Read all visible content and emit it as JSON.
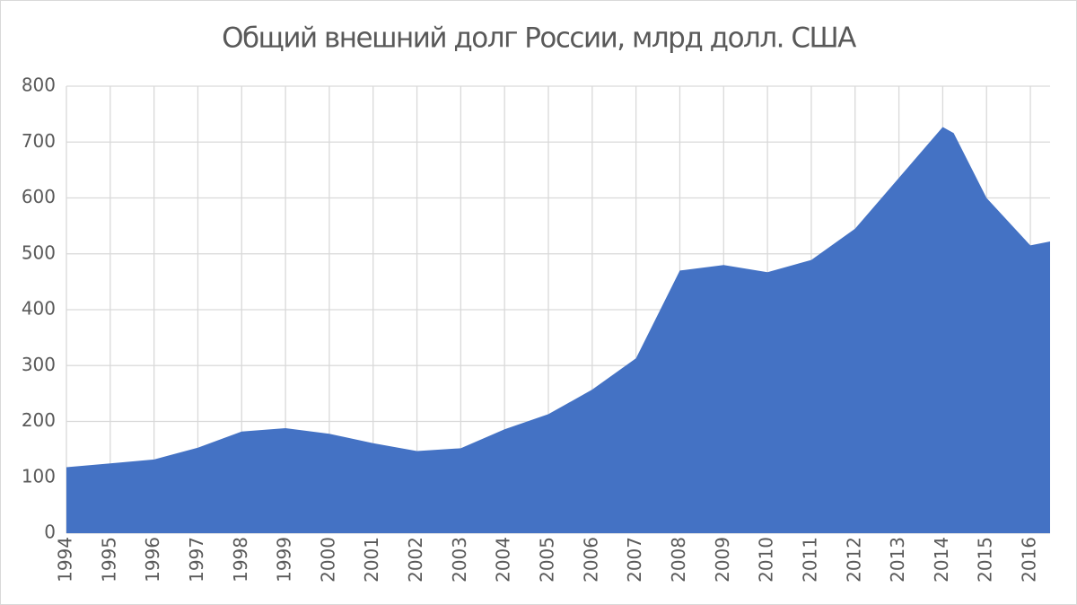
{
  "chart_data": {
    "type": "area",
    "title": "Общий внешний долг России, млрд долл. США",
    "x": [
      1994,
      1995,
      1996,
      1997,
      1998,
      1999,
      2000,
      2001,
      2002,
      2003,
      2004,
      2005,
      2006,
      2007,
      2008,
      2009,
      2010,
      2011,
      2012,
      2013,
      2014,
      2014.25,
      2015,
      2016,
      2016.45
    ],
    "values": [
      118,
      125,
      132,
      153,
      182,
      188,
      178,
      161,
      147,
      152,
      186,
      213,
      257,
      313,
      470,
      480,
      467,
      489,
      545,
      636,
      727,
      716,
      600,
      515,
      522
    ],
    "color": "#4472c4",
    "xlim": [
      1994,
      2016.45
    ],
    "xticks": [
      1994,
      1995,
      1996,
      1997,
      1998,
      1999,
      2000,
      2001,
      2002,
      2003,
      2004,
      2005,
      2006,
      2007,
      2008,
      2009,
      2010,
      2011,
      2012,
      2013,
      2014,
      2015,
      2016
    ],
    "ylim": [
      0,
      800
    ],
    "yticks": [
      0,
      100,
      200,
      300,
      400,
      500,
      600,
      700,
      800
    ],
    "grid": true
  }
}
